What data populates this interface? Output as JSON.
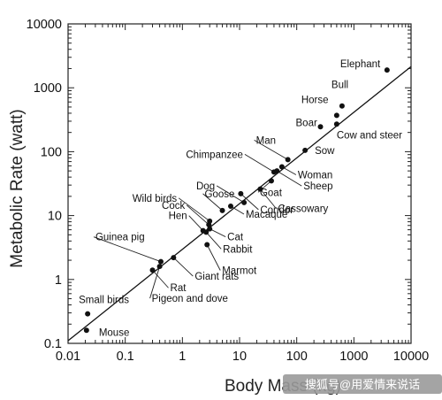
{
  "chart_data": {
    "type": "scatter",
    "title": "",
    "xlabel": "Body Mass (kg)",
    "ylabel": "Metabolic Rate (watt)",
    "xscale": "log",
    "yscale": "log",
    "xlim": [
      0.01,
      10000
    ],
    "ylim": [
      0.1,
      10000
    ],
    "x_ticks": [
      "0.01",
      "0.1",
      "1",
      "10",
      "100",
      "1000",
      "10000"
    ],
    "y_ticks": [
      "0.1",
      "1",
      "10",
      "100",
      "1000",
      "10000"
    ],
    "grid": false,
    "legend": "none",
    "fit_line": {
      "x": [
        0.01,
        10000
      ],
      "y": [
        0.11,
        2150
      ]
    },
    "points": [
      {
        "label": "Mouse",
        "x": 0.021,
        "y": 0.16
      },
      {
        "label": "Small birds",
        "x": 0.022,
        "y": 0.29
      },
      {
        "label": "Rat",
        "x": 0.3,
        "y": 1.4
      },
      {
        "label": "Pigeon and dove",
        "x": 0.4,
        "y": 1.6
      },
      {
        "label": "Guinea pig",
        "x": 0.42,
        "y": 1.9
      },
      {
        "label": "Giant rats",
        "x": 0.7,
        "y": 2.2
      },
      {
        "label": "Marmot",
        "x": 2.7,
        "y": 3.5
      },
      {
        "label": "Rabbit",
        "x": 2.6,
        "y": 5.5
      },
      {
        "label": "Cat",
        "x": 3.0,
        "y": 6.2
      },
      {
        "label": "Hen",
        "x": 2.3,
        "y": 5.8
      },
      {
        "label": "Cock",
        "x": 2.9,
        "y": 7.2
      },
      {
        "label": "Wild birds",
        "x": 3.0,
        "y": 8.2
      },
      {
        "label": "Goose",
        "x": 5.0,
        "y": 12
      },
      {
        "label": "Macaque",
        "x": 7.0,
        "y": 14
      },
      {
        "label": "Dog",
        "x": 12,
        "y": 16
      },
      {
        "label": "Condor",
        "x": 10.5,
        "y": 22
      },
      {
        "label": "Cassowary",
        "x": 23,
        "y": 26
      },
      {
        "label": "Goat",
        "x": 36,
        "y": 35
      },
      {
        "label": "Chimpanzee",
        "x": 40,
        "y": 48
      },
      {
        "label": "Sheep",
        "x": 45,
        "y": 50
      },
      {
        "label": "Woman",
        "x": 55,
        "y": 58
      },
      {
        "label": "Man",
        "x": 70,
        "y": 75
      },
      {
        "label": "Sow",
        "x": 140,
        "y": 105
      },
      {
        "label": "Boar",
        "x": 260,
        "y": 245
      },
      {
        "label": "Cow and steer",
        "x": 500,
        "y": 270
      },
      {
        "label": "Horse",
        "x": 500,
        "y": 370
      },
      {
        "label": "Bull",
        "x": 620,
        "y": 520
      },
      {
        "label": "Elephant",
        "x": 3800,
        "y": 1900
      }
    ],
    "watermark": "搜狐号@用爱情来说话"
  }
}
